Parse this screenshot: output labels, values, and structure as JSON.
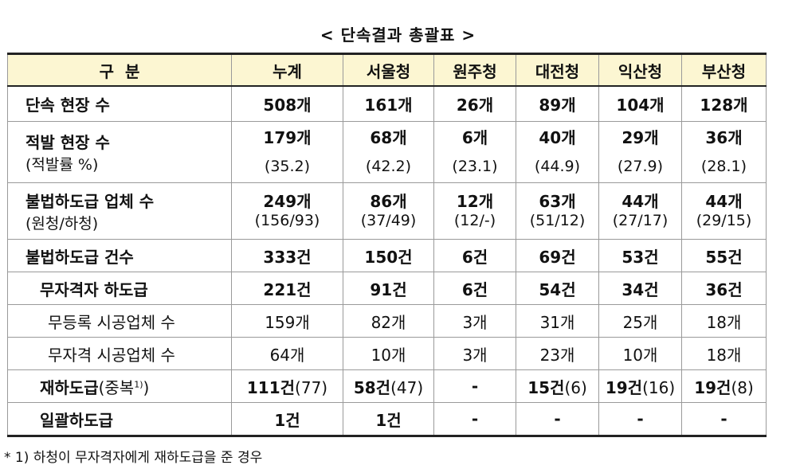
{
  "title": "< 단속결과 총괄표 >",
  "headers": [
    "구  분",
    "누계",
    "서울청",
    "원주청",
    "대전청",
    "익산청",
    "부산청"
  ],
  "rows": {
    "r1": {
      "label": "단속 현장 수",
      "values": [
        "508개",
        "161개",
        "26개",
        "89개",
        "104개",
        "128개"
      ]
    },
    "r2": {
      "label": "적발 현장 수",
      "sublabel": "(적발률 %)",
      "values": [
        "179개",
        "68개",
        "6개",
        "40개",
        "29개",
        "36개"
      ],
      "subvalues": [
        "(35.2)",
        "(42.2)",
        "(23.1)",
        "(44.9)",
        "(27.9)",
        "(28.1)"
      ]
    },
    "r3": {
      "label": "불법하도급 업체 수",
      "sublabel": "(원청/하청)",
      "values": [
        "249개",
        "86개",
        "12개",
        "63개",
        "44개",
        "44개"
      ],
      "subvalues": [
        "(156/93)",
        "(37/49)",
        "(12/-)",
        "(51/12)",
        "(27/17)",
        "(29/15)"
      ]
    },
    "r4": {
      "label": "불법하도급 건수",
      "values": [
        "333건",
        "150건",
        "6건",
        "69건",
        "53건",
        "55건"
      ]
    },
    "r5": {
      "label": "무자격자 하도급",
      "values": [
        "221건",
        "91건",
        "6건",
        "54건",
        "34건",
        "36건"
      ]
    },
    "r6": {
      "label": "무등록 시공업체 수",
      "values": [
        "159개",
        "82개",
        "3개",
        "31개",
        "25개",
        "18개"
      ]
    },
    "r7": {
      "label": "무자격 시공업체 수",
      "values": [
        "64개",
        "10개",
        "3개",
        "23개",
        "10개",
        "18개"
      ]
    },
    "r8": {
      "label": "재하도급",
      "label_suffix": "(중복",
      "label_sup": "1)",
      "label_close": ")",
      "values": [
        "111건",
        "58건",
        "-",
        "15건",
        "19건",
        "19건"
      ],
      "extras": [
        "(77)",
        "(47)",
        "",
        "(6)",
        "(16)",
        "(8)"
      ]
    },
    "r9": {
      "label": "일괄하도급",
      "values": [
        "1건",
        "1건",
        "-",
        "-",
        "-",
        "-"
      ]
    }
  },
  "footnote": "* 1) 하청이 무자격자에게 재하도급을 준 경우"
}
